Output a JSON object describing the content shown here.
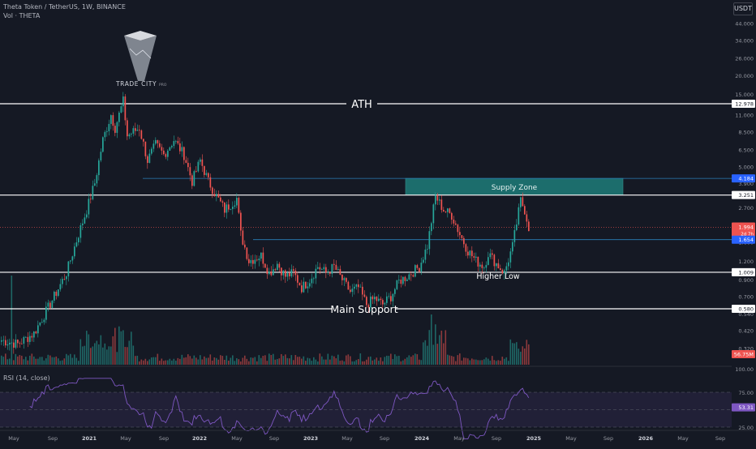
{
  "header": {
    "symbol_line": "Theta Token / TetherUS, 1W, BINANCE",
    "volume_line": "Vol · THETA",
    "rsi_line": "RSI (14, close)",
    "currency": "USDT"
  },
  "logo": {
    "text": "TRADE CITY",
    "suffix": "PRO"
  },
  "colors": {
    "background": "#151924",
    "up": "#26a69a",
    "down": "#ef5350",
    "level_line": "#ffffff",
    "supply_zone": "#1f8a84",
    "blue_line": "#2a80b9",
    "rsi_line": "#7e57c2",
    "price_badge": "#ef5350",
    "blue_badge": "#2962ff"
  },
  "price_axis": {
    "ticks": [
      "44.000",
      "34.000",
      "26.000",
      "20.000",
      "15.000",
      "11.000",
      "8.500",
      "6.500",
      "5.000",
      "3.900",
      "2.700",
      "2.100",
      "1.600",
      "1.200",
      "0.900",
      "0.700",
      "0.540",
      "0.420",
      "0.320"
    ]
  },
  "levels": [
    {
      "name": "ath-line",
      "value": 12.978,
      "label": "ATH",
      "badge": "12.978"
    },
    {
      "name": "resistance-line",
      "value": 3.251,
      "label": "",
      "badge": "3.251"
    },
    {
      "name": "support-line",
      "value": 1.009,
      "label": "Higher Low",
      "badge": "1.009"
    },
    {
      "name": "main-support-line",
      "value": 0.58,
      "label": "Main Support",
      "badge": "0.580"
    }
  ],
  "supply_zone": {
    "label": "Supply Zone",
    "top": 4.184,
    "bottom": 3.251,
    "badge": "4.184"
  },
  "blue_level": {
    "value": 1.654,
    "badge": "1.654"
  },
  "current_price": {
    "value": 1.994,
    "badge": "1.994",
    "countdown": "2d 7h"
  },
  "volume_badge": "56.75M",
  "rsi": {
    "value": 53.31,
    "badge": "53.31",
    "ticks": [
      "100.00",
      "75.00",
      "25.00"
    ]
  },
  "time_axis": [
    "May",
    "Sep",
    "2021",
    "May",
    "Sep",
    "2022",
    "May",
    "Sep",
    "2023",
    "May",
    "Sep",
    "2024",
    "May",
    "Sep",
    "2025",
    "May",
    "Sep",
    "2026",
    "May",
    "Sep"
  ]
}
